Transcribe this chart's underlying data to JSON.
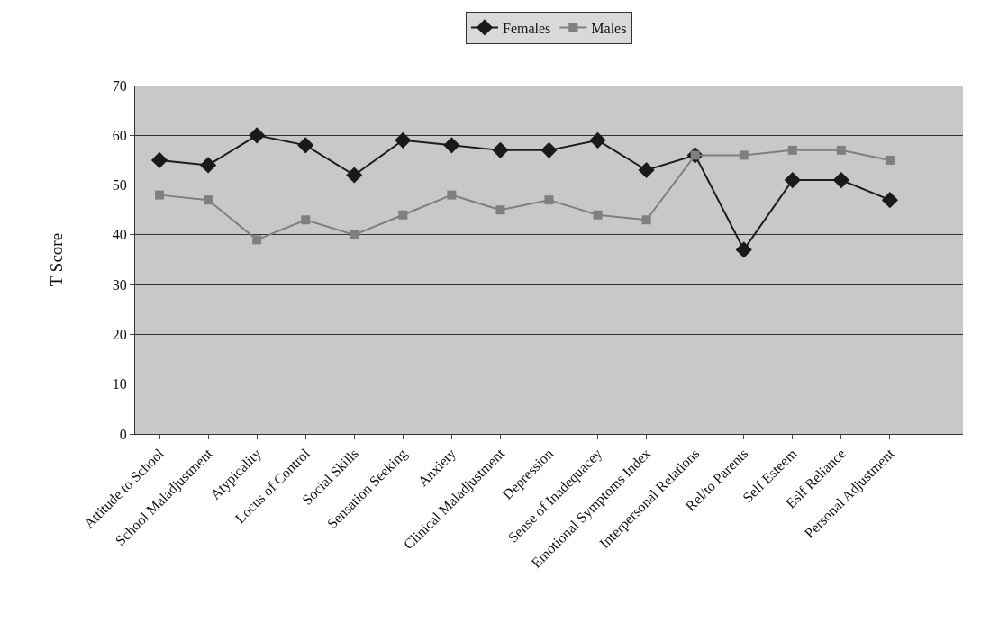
{
  "chart_data": {
    "type": "line",
    "ylabel": "T Score",
    "categories": [
      "Attitude to School",
      "School Maladjustment",
      "Atypicality",
      "Locus of Control",
      "Social Skills",
      "Sensation Seeking",
      "Anxiety",
      "Clinical Maladjustment",
      "Depression",
      "Sense of Inadequacey",
      "Emotional Symptoms Index",
      "Interpersonal Relations",
      "Rel/to Parents",
      "Self Esteem",
      "Eslf Reliance",
      "Personal Adjustment",
      null
    ],
    "series": [
      {
        "name": "Females",
        "color": "#1a1a1a",
        "marker": "diamond",
        "values": [
          55,
          54,
          60,
          58,
          52,
          59,
          58,
          57,
          57,
          59,
          53,
          56,
          37,
          51,
          51,
          47,
          null
        ]
      },
      {
        "name": "Males",
        "color": "#7f7f7f",
        "marker": "square",
        "values": [
          48,
          47,
          39,
          43,
          40,
          44,
          48,
          45,
          47,
          44,
          43,
          56,
          56,
          57,
          57,
          55,
          null
        ]
      }
    ],
    "ylim": [
      0,
      70
    ],
    "yticks": [
      0,
      10,
      20,
      30,
      40,
      50,
      60,
      70
    ],
    "grid": "y",
    "legend": "top"
  }
}
